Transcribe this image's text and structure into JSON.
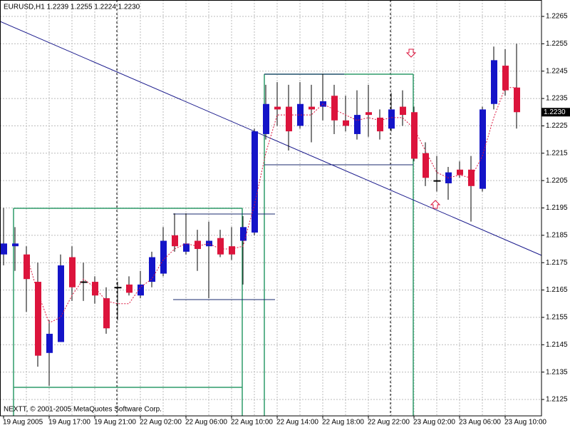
{
  "chart_data": {
    "type": "candlestick",
    "title": "EURUSD,H1  1.2239 1.2255 1.2224 1.2230",
    "footer": "NEXTT, © 2001-2005 MetaQuotes Software Corp.",
    "categories": [
      "19 Aug 2005",
      null,
      null,
      null,
      "19 Aug 17:00",
      null,
      null,
      null,
      "19 Aug 21:00",
      null,
      null,
      null,
      "22 Aug 02:00",
      null,
      null,
      null,
      "22 Aug 06:00",
      null,
      null,
      null,
      "22 Aug 10:00",
      null,
      null,
      null,
      "22 Aug 14:00",
      null,
      null,
      null,
      "22 Aug 18:00",
      null,
      null,
      null,
      "22 Aug 22:00",
      null,
      null,
      null,
      "23 Aug 02:00",
      null,
      null,
      null,
      "23 Aug 06:00",
      null,
      null,
      null,
      "23 Aug 10:00",
      null
    ],
    "open": [
      1.2178,
      1.2181,
      1.2178,
      1.2168,
      1.2142,
      1.2146,
      1.2177,
      1.2168,
      1.2168,
      1.2162,
      1.2166,
      1.2167,
      1.2163,
      1.2168,
      1.2171,
      1.2185,
      1.2179,
      1.2183,
      1.2181,
      1.2184,
      1.2181,
      1.2183,
      1.2186,
      1.2222,
      1.2232,
      1.2232,
      1.2225,
      1.2232,
      1.2232,
      1.2236,
      1.2227,
      1.2222,
      1.223,
      1.2228,
      1.2224,
      1.2232,
      1.223,
      1.2215,
      1.2205,
      1.2204,
      1.2209,
      1.2209,
      1.2202,
      1.2233,
      1.2247,
      1.2239
    ],
    "high": [
      1.2195,
      1.2188,
      1.2181,
      1.2175,
      1.2154,
      1.2178,
      1.2181,
      1.2175,
      1.217,
      1.2166,
      1.2168,
      1.217,
      1.2172,
      1.2179,
      1.2188,
      1.2193,
      1.2193,
      1.2187,
      1.219,
      1.2187,
      1.2188,
      1.2192,
      1.2224,
      1.224,
      1.2241,
      1.224,
      1.2241,
      1.224,
      1.2244,
      1.224,
      1.2236,
      1.2238,
      1.224,
      1.2231,
      1.2237,
      1.2238,
      1.2232,
      1.2219,
      1.2214,
      1.221,
      1.2212,
      1.2214,
      1.2232,
      1.2254,
      1.2253,
      1.2255
    ],
    "low": [
      1.2174,
      1.2172,
      1.2157,
      1.2137,
      1.213,
      1.2146,
      1.2161,
      1.2161,
      1.216,
      1.2149,
      1.2154,
      1.2163,
      1.2162,
      1.2166,
      1.217,
      1.2179,
      1.2178,
      1.2172,
      1.2162,
      1.2177,
      1.2176,
      1.2167,
      1.2185,
      1.222,
      1.2225,
      1.2216,
      1.2224,
      1.2219,
      1.2227,
      1.2222,
      1.2223,
      1.222,
      1.2221,
      1.222,
      1.2223,
      1.2225,
      1.2212,
      1.2203,
      1.2201,
      1.2198,
      1.2206,
      1.219,
      1.2201,
      1.2231,
      1.2236,
      1.2224
    ],
    "close": [
      1.2182,
      1.2182,
      1.2169,
      1.2141,
      1.2149,
      1.2174,
      1.2166,
      1.2168,
      1.2163,
      1.2151,
      1.2166,
      1.2164,
      1.2167,
      1.2177,
      1.2183,
      1.2181,
      1.2182,
      1.218,
      1.2183,
      1.2178,
      1.2178,
      1.2188,
      1.2223,
      1.2233,
      1.2231,
      1.2223,
      1.2233,
      1.2231,
      1.2234,
      1.2227,
      1.2225,
      1.2229,
      1.2229,
      1.2223,
      1.2231,
      1.2229,
      1.2213,
      1.2206,
      1.2205,
      1.2208,
      1.2207,
      1.2203,
      1.2231,
      1.2249,
      1.2238,
      1.223
    ],
    "ma": [
      null,
      null,
      1.2178,
      1.2164,
      1.2153,
      1.2155,
      1.2163,
      1.2169,
      1.2166,
      1.2161,
      1.216,
      1.216,
      1.2166,
      1.2169,
      1.2176,
      1.218,
      1.2182,
      1.2181,
      1.2182,
      1.218,
      1.218,
      1.2181,
      1.2196,
      1.2215,
      1.2229,
      1.2229,
      1.2229,
      1.2229,
      1.2233,
      1.2231,
      1.2229,
      1.2227,
      1.2228,
      1.2227,
      1.2228,
      1.2228,
      1.2224,
      1.2216,
      1.2208,
      1.2206,
      1.2207,
      1.2206,
      1.2214,
      1.2228,
      1.2239,
      1.2239
    ],
    "up_color": "#1414c8",
    "down_color": "#dc143c",
    "ma_color": "#dc143c",
    "ylim": [
      1.2119,
      1.2271
    ],
    "yticks": [
      1.2125,
      1.2135,
      1.2145,
      1.2155,
      1.2165,
      1.2175,
      1.2185,
      1.2195,
      1.2205,
      1.2215,
      1.2225,
      1.2235,
      1.2245,
      1.2255,
      1.2265
    ],
    "price_marker": {
      "value": 1.223,
      "label": "1.2230"
    },
    "grid": true
  }
}
